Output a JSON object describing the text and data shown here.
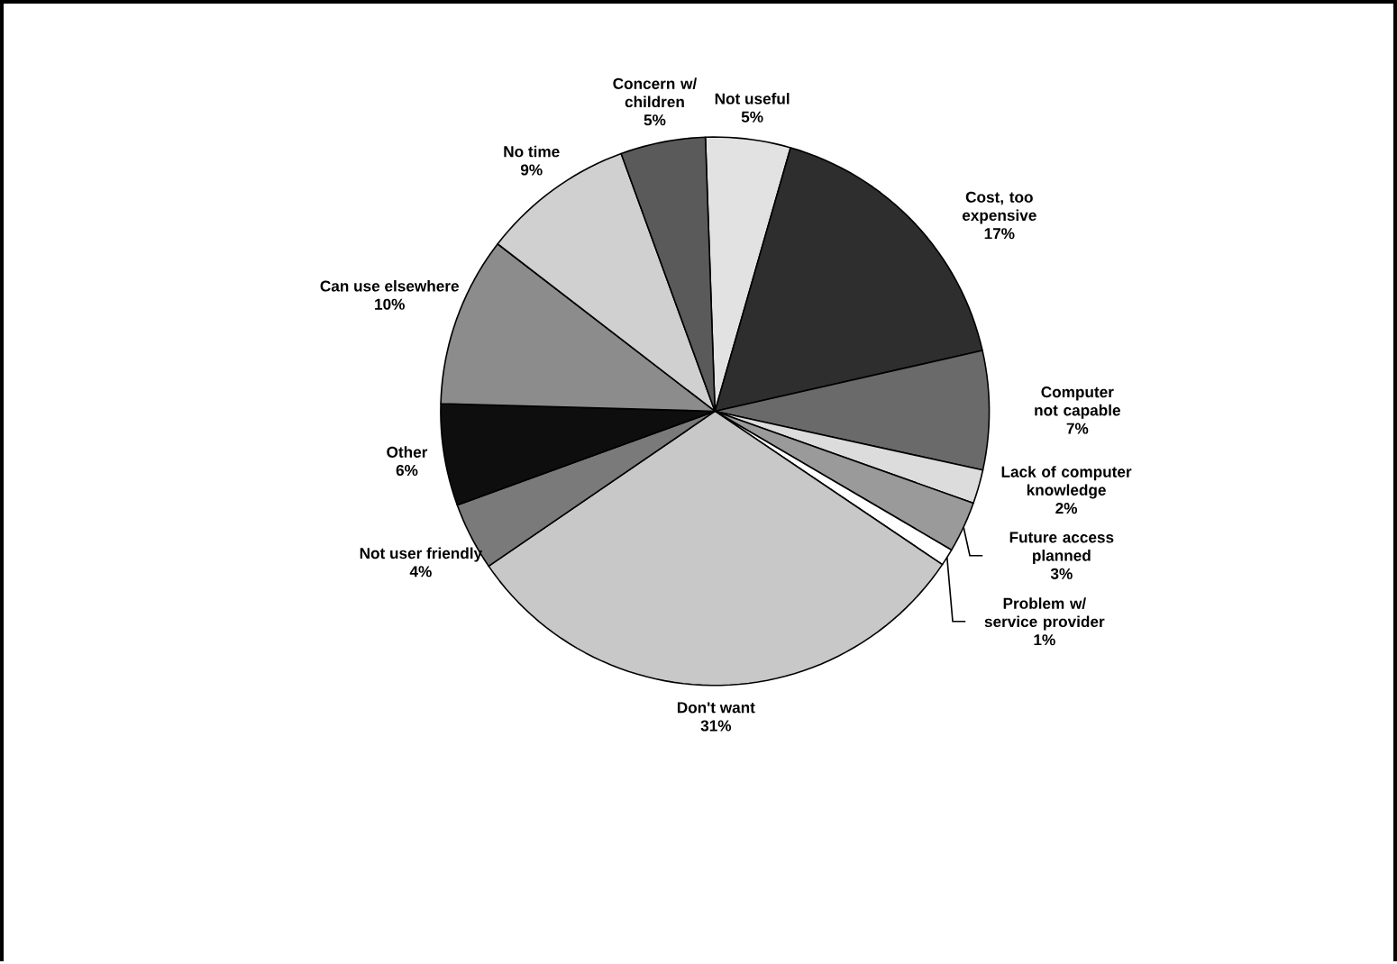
{
  "chart_data": {
    "type": "pie",
    "categories": [
      "Not useful",
      "Cost, too expensive",
      "Computer not capable",
      "Lack of computer knowledge",
      "Future access planned",
      "Problem w/ service provider",
      "Don't want",
      "Not user friendly",
      "Other",
      "Can use elsewhere",
      "No time",
      "Concern w/ children"
    ],
    "values": [
      5,
      17,
      7,
      2,
      3,
      1,
      31,
      4,
      6,
      10,
      9,
      5
    ],
    "value_labels": [
      "5%",
      "17%",
      "7%",
      "2%",
      "3%",
      "1%",
      "31%",
      "4%",
      "6%",
      "10%",
      "9%",
      "5%"
    ],
    "colors": [
      "#e2e2e2",
      "#2e2e2e",
      "#6a6a6a",
      "#dcdcdc",
      "#9a9a9a",
      "#ffffff",
      "#c8c8c8",
      "#7a7a7a",
      "#0e0e0e",
      "#8c8c8c",
      "#d0d0d0",
      "#5a5a5a"
    ]
  }
}
